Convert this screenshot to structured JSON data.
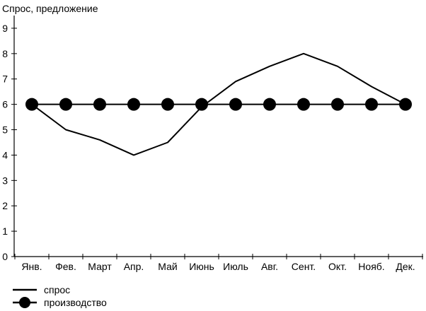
{
  "chart_data": {
    "type": "line",
    "title": "",
    "ylabel": "Спрос, предложение",
    "xlabel": "",
    "categories": [
      "Янв.",
      "Фев.",
      "Март",
      "Апр.",
      "Май",
      "Июнь",
      "Июль",
      "Авг.",
      "Сент.",
      "Окт.",
      "Нояб.",
      "Дек."
    ],
    "ylim": [
      0,
      9.5
    ],
    "yticks": [
      0,
      1,
      2,
      3,
      4,
      5,
      6,
      7,
      8,
      9
    ],
    "series": [
      {
        "name": "спрос",
        "marker": "none",
        "color": "#000000",
        "values": [
          6.0,
          5.0,
          4.6,
          4.0,
          4.5,
          5.9,
          6.9,
          7.5,
          8.0,
          7.5,
          6.7,
          6.0
        ]
      },
      {
        "name": "производство",
        "marker": "circle",
        "color": "#000000",
        "values": [
          6.0,
          6.0,
          6.0,
          6.0,
          6.0,
          6.0,
          6.0,
          6.0,
          6.0,
          6.0,
          6.0,
          6.0
        ]
      }
    ],
    "grid": false,
    "legend": "bottom-left"
  }
}
